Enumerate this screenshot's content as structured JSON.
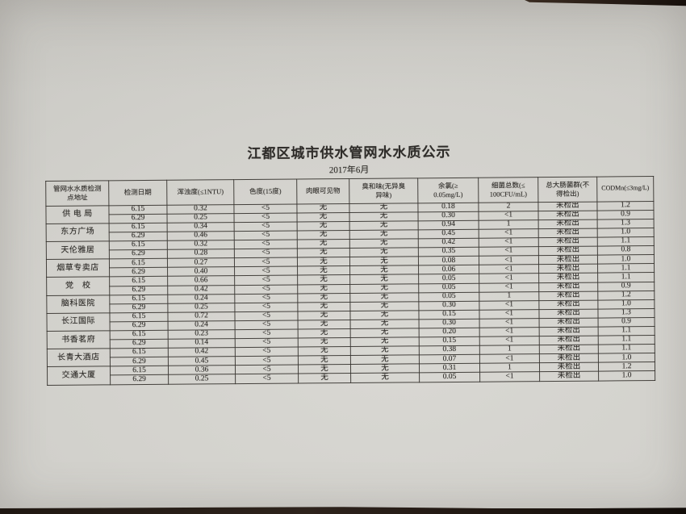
{
  "photo": {
    "paper_color": "#d2d1cc",
    "ink_color": "#2f2d2a",
    "desk_edge_color": "#241b16"
  },
  "document": {
    "title": "江都区城市供水管网水水质公示",
    "subtitle": "2017年6月",
    "table": {
      "headers": [
        "管网水水质检测\n点地址",
        "检测日期",
        "浑浊度(≤1NTU)",
        "色度(15度)",
        "肉眼可见物",
        "臭和味(无异臭\n异味)",
        "余氯(≥\n0.05mg/L)",
        "细菌总数(≤\n100CFU/mL)",
        "总大肠菌群(不\n得检出)",
        "CODMn(≤3mg/L)"
      ],
      "groups": [
        {
          "location": "供 电 局",
          "rows": [
            [
              "6.15",
              "0.32",
              "<5",
              "无",
              "无",
              "0.18",
              "2",
              "未检出",
              "1.2"
            ],
            [
              "6.29",
              "0.25",
              "<5",
              "无",
              "无",
              "0.30",
              "<1",
              "未检出",
              "0.9"
            ]
          ]
        },
        {
          "location": "东方广场",
          "rows": [
            [
              "6.15",
              "0.34",
              "<5",
              "无",
              "无",
              "0.94",
              "1",
              "未检出",
              "1.3"
            ],
            [
              "6.29",
              "0.46",
              "<5",
              "无",
              "无",
              "0.45",
              "<1",
              "未检出",
              "1.0"
            ]
          ]
        },
        {
          "location": "天伦雅居",
          "rows": [
            [
              "6.15",
              "0.32",
              "<5",
              "无",
              "无",
              "0.42",
              "<1",
              "未检出",
              "1.1"
            ],
            [
              "6.29",
              "0.28",
              "<5",
              "无",
              "无",
              "0.35",
              "<1",
              "未检出",
              "0.8"
            ]
          ]
        },
        {
          "location": "烟草专卖店",
          "rows": [
            [
              "6.15",
              "0.27",
              "<5",
              "无",
              "无",
              "0.08",
              "<1",
              "未检出",
              "1.0"
            ],
            [
              "6.29",
              "0.40",
              "<5",
              "无",
              "无",
              "0.06",
              "<1",
              "未检出",
              "1.1"
            ]
          ]
        },
        {
          "location": "党　校",
          "rows": [
            [
              "6.15",
              "0.66",
              "<5",
              "无",
              "无",
              "0.05",
              "<1",
              "未检出",
              "1.1"
            ],
            [
              "6.29",
              "0.42",
              "<5",
              "无",
              "无",
              "0.05",
              "<1",
              "未检出",
              "0.9"
            ]
          ]
        },
        {
          "location": "脑科医院",
          "rows": [
            [
              "6.15",
              "0.24",
              "<5",
              "无",
              "无",
              "0.05",
              "1",
              "未检出",
              "1.2"
            ],
            [
              "6.29",
              "0.25",
              "<5",
              "无",
              "无",
              "0.30",
              "<1",
              "未检出",
              "1.0"
            ]
          ]
        },
        {
          "location": "长江国际",
          "rows": [
            [
              "6.15",
              "0.72",
              "<5",
              "无",
              "无",
              "0.15",
              "<1",
              "未检出",
              "1.3"
            ],
            [
              "6.29",
              "0.24",
              "<5",
              "无",
              "无",
              "0.30",
              "<1",
              "未检出",
              "0.9"
            ]
          ]
        },
        {
          "location": "书香茗府",
          "rows": [
            [
              "6.15",
              "0.23",
              "<5",
              "无",
              "无",
              "0.20",
              "<1",
              "未检出",
              "1.1"
            ],
            [
              "6.29",
              "0.14",
              "<5",
              "无",
              "无",
              "0.15",
              "<1",
              "未检出",
              "1.1"
            ]
          ]
        },
        {
          "location": "长青大酒店",
          "rows": [
            [
              "6.15",
              "0.42",
              "<5",
              "无",
              "无",
              "0.38",
              "1",
              "未检出",
              "1.1"
            ],
            [
              "6.29",
              "0.45",
              "<5",
              "无",
              "无",
              "0.07",
              "<1",
              "未检出",
              "1.0"
            ]
          ]
        },
        {
          "location": "交通大厦",
          "rows": [
            [
              "6.15",
              "0.36",
              "<5",
              "无",
              "无",
              "0.31",
              "1",
              "未检出",
              "1.2"
            ],
            [
              "6.29",
              "0.25",
              "<5",
              "无",
              "无",
              "0.05",
              "<1",
              "未检出",
              "1.0"
            ]
          ]
        }
      ]
    }
  }
}
